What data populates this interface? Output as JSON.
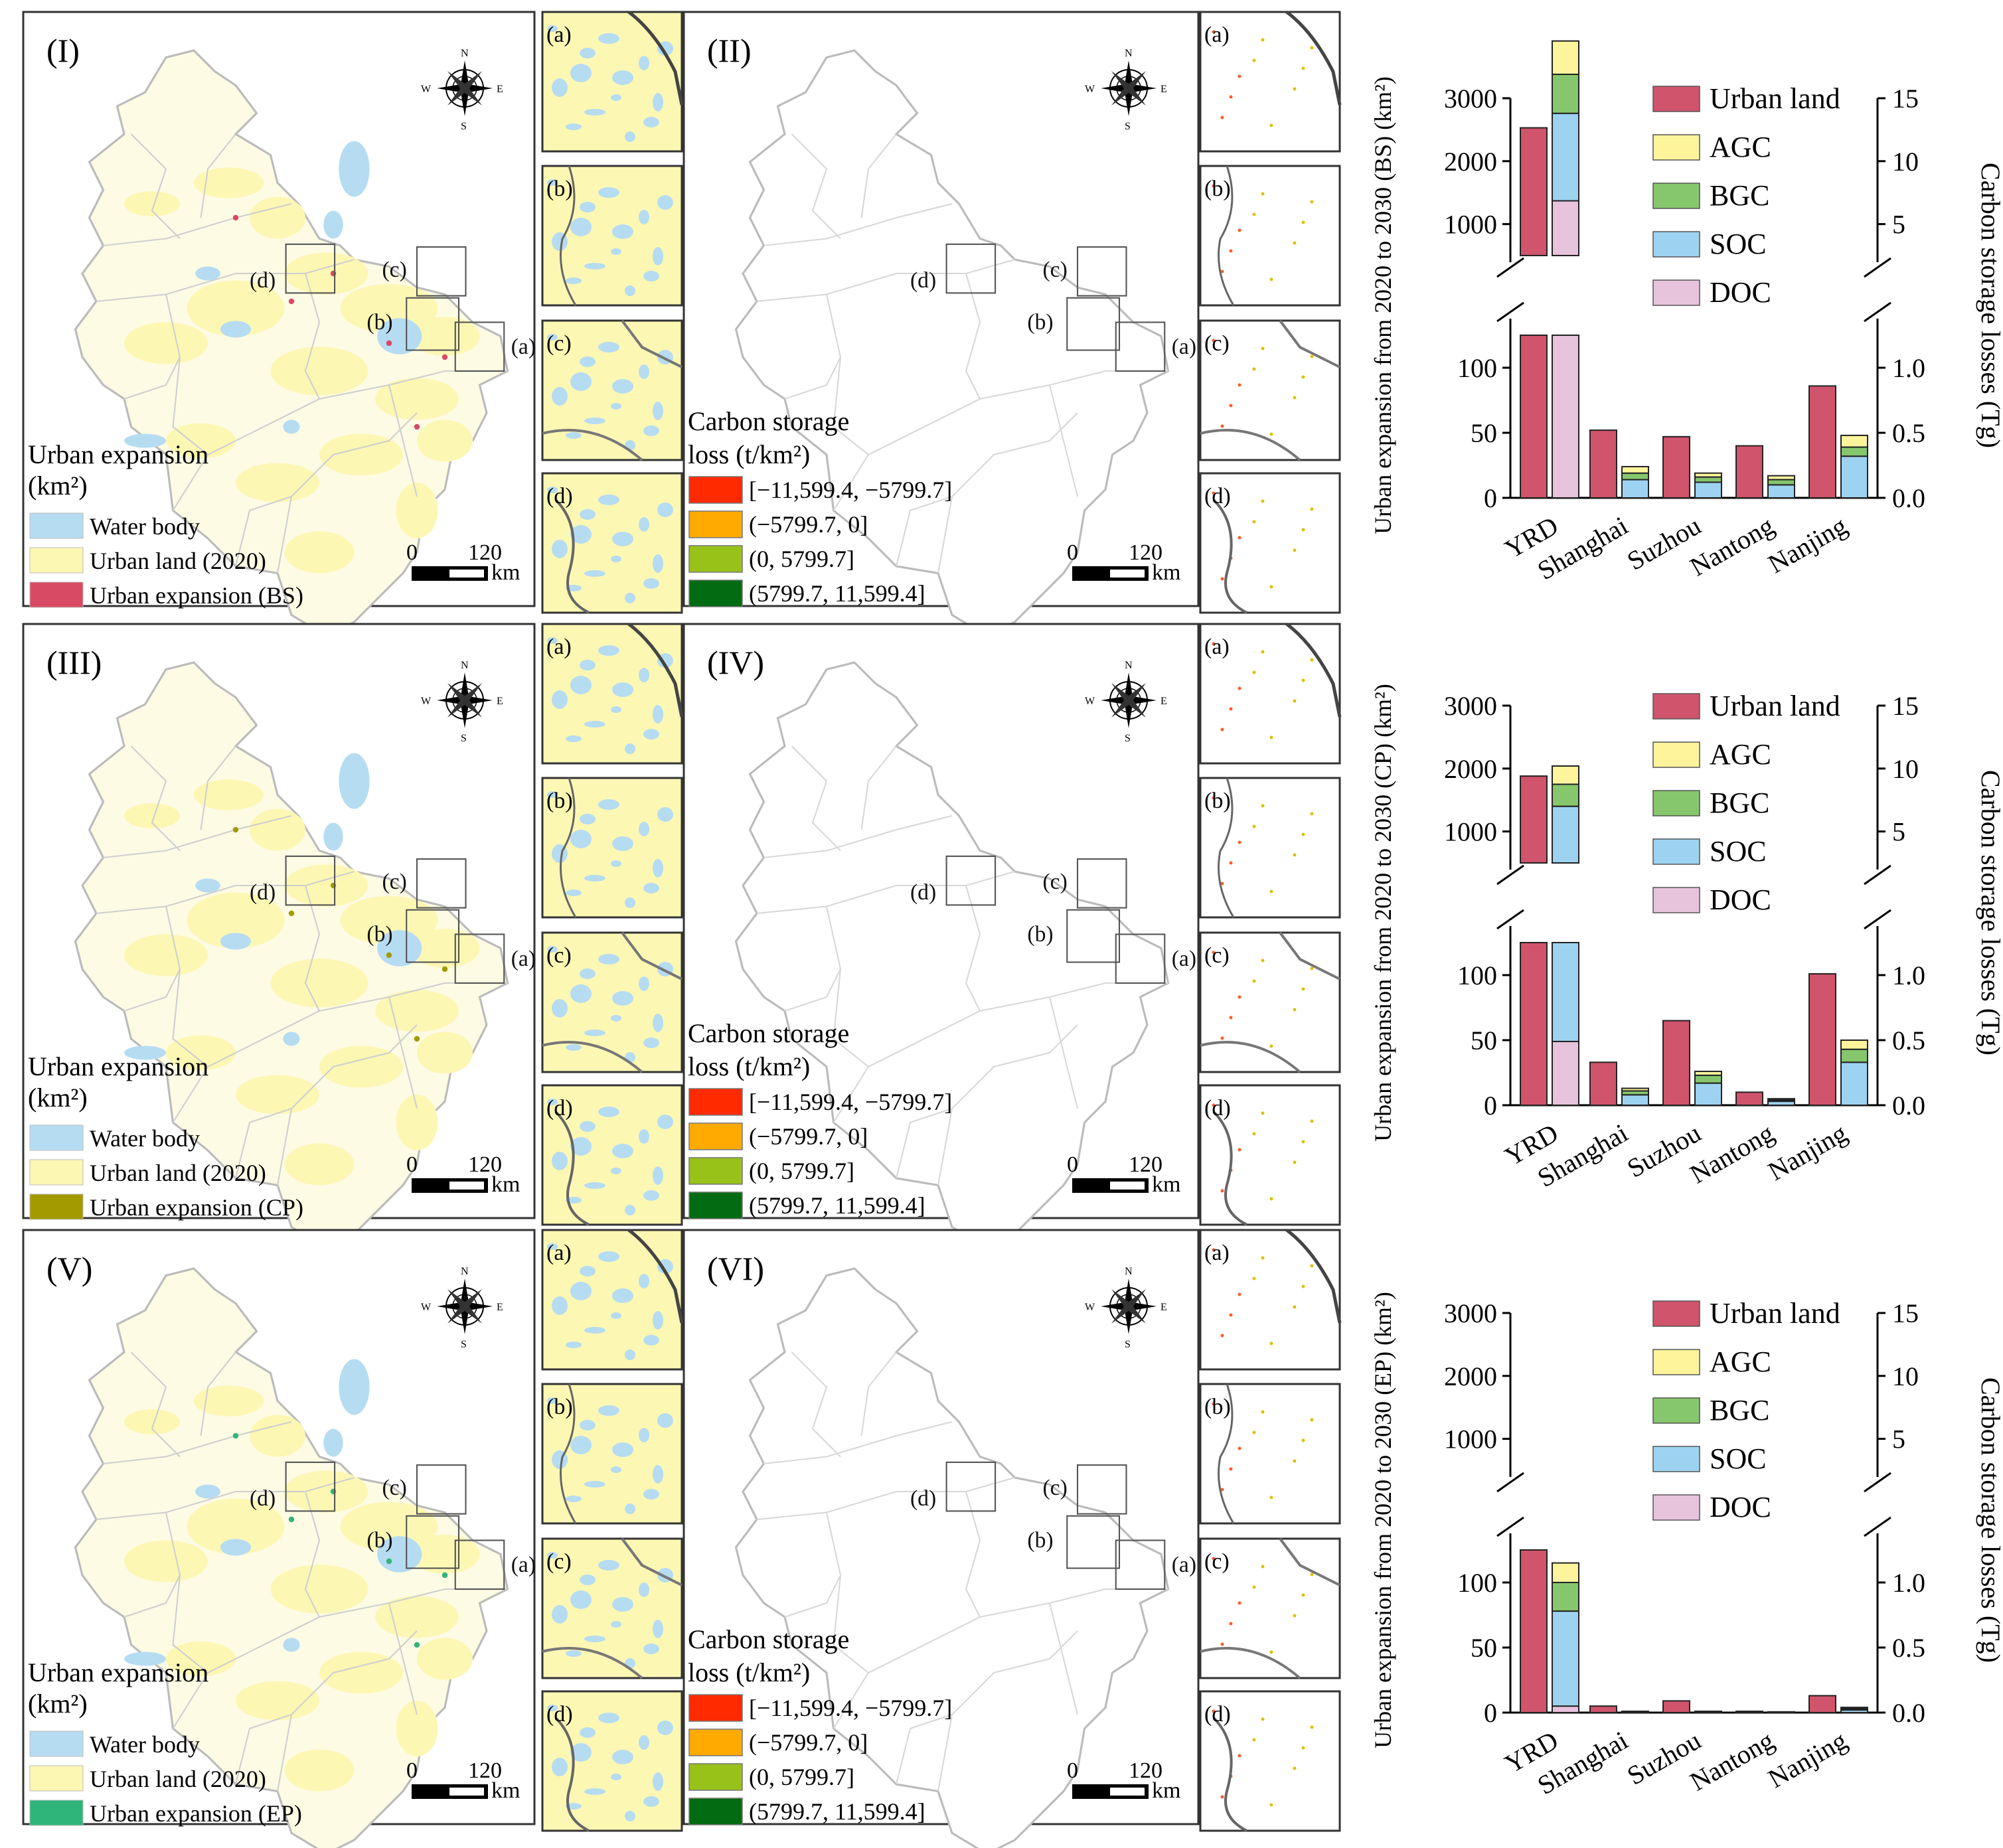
{
  "rows": [
    {
      "left_label": "(I)",
      "right_label": "(II)",
      "expansion_legend_title_1": "Urban expansion",
      "expansion_legend_title_2": "(km²)",
      "legend_items": [
        "Water body",
        "Urban land (2020)",
        "Urban expansion (BS)"
      ],
      "legend_colors": [
        "#b6dcf2",
        "#fdf7b4",
        "#d84a64"
      ],
      "expansion_color": "#d84a64"
    },
    {
      "left_label": "(III)",
      "right_label": "(IV)",
      "expansion_legend_title_1": "Urban expansion",
      "expansion_legend_title_2": "(km²)",
      "legend_items": [
        "Water body",
        "Urban land (2020)",
        "Urban expansion (CP)"
      ],
      "legend_colors": [
        "#b6dcf2",
        "#fdf7b4",
        "#a39a00"
      ],
      "expansion_color": "#a39a00"
    },
    {
      "left_label": "(V)",
      "right_label": "(VI)",
      "expansion_legend_title_1": "Urban expansion",
      "expansion_legend_title_2": "(km²)",
      "legend_items": [
        "Water body",
        "Urban land (2020)",
        "Urban expansion (EP)"
      ],
      "legend_colors": [
        "#b6dcf2",
        "#fdf7b4",
        "#2fb47a"
      ],
      "expansion_color": "#2fb47a"
    }
  ],
  "inset_labels": [
    "(a)",
    "(b)",
    "(c)",
    "(d)"
  ],
  "compass": {
    "n": "N",
    "s": "S",
    "e": "E",
    "w": "W"
  },
  "scalebar": {
    "zero": "0",
    "value": "120",
    "unit": "km"
  },
  "carbon_legend": {
    "title_1": "Carbon storage",
    "title_2": "loss (t/km²)",
    "items": [
      "[−11,599.4, −5799.7]",
      "(−5799.7, 0]",
      "(0, 5799.7]",
      "(5799.7, 11,599.4]"
    ],
    "colors": [
      "#ff2a00",
      "#ffaa00",
      "#98c21a",
      "#036b12"
    ]
  },
  "chart_data": [
    {
      "type": "bar",
      "scenario": "BS",
      "ylabel": "Urban expansion from 2020 to 2030 (BS) (km²)",
      "ylabel_right": "Carbon storage losses (Tg)",
      "categories": [
        "YRD",
        "Shanghai",
        "Suzhou",
        "Nantong",
        "Nanjing"
      ],
      "y_left_upper_ticks": [
        "1000",
        "2000",
        "3000"
      ],
      "y_left_lower_ticks": [
        "0",
        "50",
        "100"
      ],
      "y_right_upper_ticks": [
        "5",
        "10",
        "15"
      ],
      "y_right_lower_ticks": [
        "0.0",
        "0.5",
        "1.0"
      ],
      "legend": [
        "Urban land",
        "AGC",
        "BGC",
        "SOC",
        "DOC"
      ],
      "colors": {
        "urban": "#d0546c",
        "AGC": "#fdf49c",
        "BGC": "#86c66c",
        "SOC": "#9dd3f1",
        "DOC": "#e8c3dc"
      },
      "urban_land": [
        2530,
        52,
        47,
        40,
        86
      ],
      "carbon": {
        "DOC": [
          6.85,
          0.0,
          0.0,
          0.0,
          0.0
        ],
        "SOC": [
          6.95,
          0.14,
          0.12,
          0.1,
          0.32
        ],
        "BGC": [
          3.1,
          0.05,
          0.04,
          0.04,
          0.07
        ],
        "AGC": [
          2.65,
          0.05,
          0.03,
          0.03,
          0.09
        ]
      }
    },
    {
      "type": "bar",
      "scenario": "CP",
      "ylabel": "Urban expansion from 2020 to 2030 (CP) (km²)",
      "ylabel_right": "Carbon storage losses (Tg)",
      "categories": [
        "YRD",
        "Shanghai",
        "Suzhou",
        "Nantong",
        "Nanjing"
      ],
      "y_left_upper_ticks": [
        "1000",
        "2000",
        "3000"
      ],
      "y_left_lower_ticks": [
        "0",
        "50",
        "100"
      ],
      "y_right_upper_ticks": [
        "5",
        "10",
        "15"
      ],
      "y_right_lower_ticks": [
        "0.0",
        "0.5",
        "1.0"
      ],
      "legend": [
        "Urban land",
        "AGC",
        "BGC",
        "SOC",
        "DOC"
      ],
      "colors": {
        "urban": "#d0546c",
        "AGC": "#fdf49c",
        "BGC": "#86c66c",
        "SOC": "#9dd3f1",
        "DOC": "#e8c3dc"
      },
      "urban_land": [
        1880,
        33,
        65,
        10,
        101
      ],
      "carbon": {
        "DOC": [
          0.49,
          0.0,
          0.0,
          0.0,
          0.0
        ],
        "SOC": [
          6.51,
          0.08,
          0.17,
          0.03,
          0.33
        ],
        "BGC": [
          1.75,
          0.03,
          0.06,
          0.01,
          0.1
        ],
        "AGC": [
          1.45,
          0.02,
          0.03,
          0.01,
          0.07
        ]
      }
    },
    {
      "type": "bar",
      "scenario": "EP",
      "ylabel": "Urban expansion from 2020 to 2030 (EP) (km²)",
      "ylabel_right": "Carbon storage losses (Tg)",
      "categories": [
        "YRD",
        "Shanghai",
        "Suzhou",
        "Nantong",
        "Nanjing"
      ],
      "y_left_upper_ticks": [
        "1000",
        "2000",
        "3000"
      ],
      "y_left_lower_ticks": [
        "0",
        "50",
        "100"
      ],
      "y_right_upper_ticks": [
        "5",
        "10",
        "15"
      ],
      "y_right_lower_ticks": [
        "0.0",
        "0.5",
        "1.0"
      ],
      "legend": [
        "Urban land",
        "AGC",
        "BGC",
        "SOC",
        "DOC"
      ],
      "colors": {
        "urban": "#d0546c",
        "AGC": "#fdf49c",
        "BGC": "#86c66c",
        "SOC": "#9dd3f1",
        "DOC": "#e8c3dc"
      },
      "urban_land": [
        400,
        5,
        9,
        1,
        13
      ],
      "carbon": {
        "DOC": [
          0.05,
          0.0,
          0.0,
          0.0,
          0.0
        ],
        "SOC": [
          0.73,
          0.005,
          0.005,
          0.003,
          0.02
        ],
        "BGC": [
          0.22,
          0.003,
          0.003,
          0.002,
          0.01
        ],
        "AGC": [
          0.15,
          0.002,
          0.002,
          0.001,
          0.01
        ]
      }
    }
  ]
}
